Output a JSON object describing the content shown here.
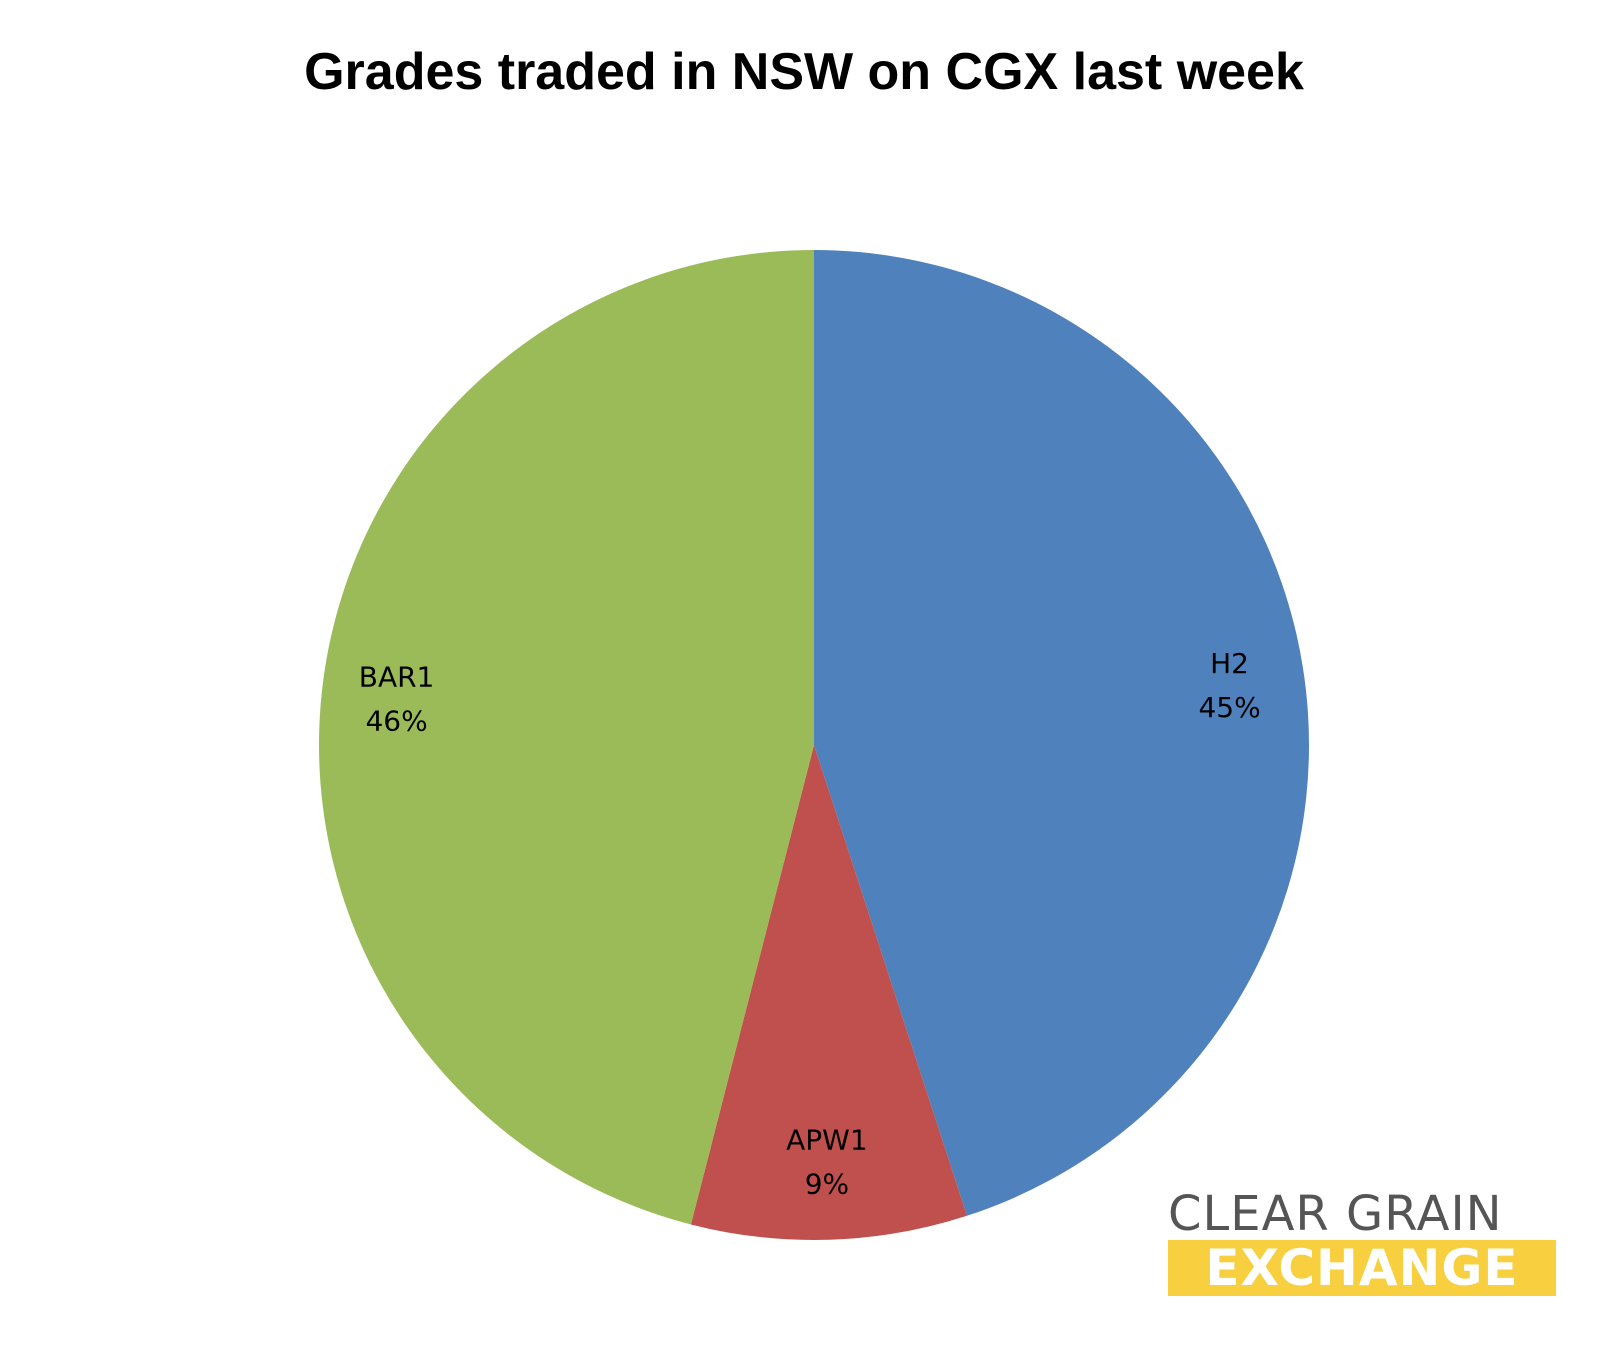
{
  "chart_data": {
    "type": "pie",
    "title": "Grades traded in NSW on CGX last week",
    "slices": [
      {
        "label": "H2",
        "value": 45,
        "display": "45%",
        "color": "#4f81bd"
      },
      {
        "label": "APW1",
        "value": 9,
        "display": "9%",
        "color": "#c0504d"
      },
      {
        "label": "BAR1",
        "value": 46,
        "display": "46%",
        "color": "#9bbb59"
      }
    ],
    "start_angle": "12 o'clock",
    "direction": "clockwise",
    "legend": "none"
  },
  "logo": {
    "line1": "CLEAR GRAIN",
    "line2": "EXCHANGE"
  }
}
